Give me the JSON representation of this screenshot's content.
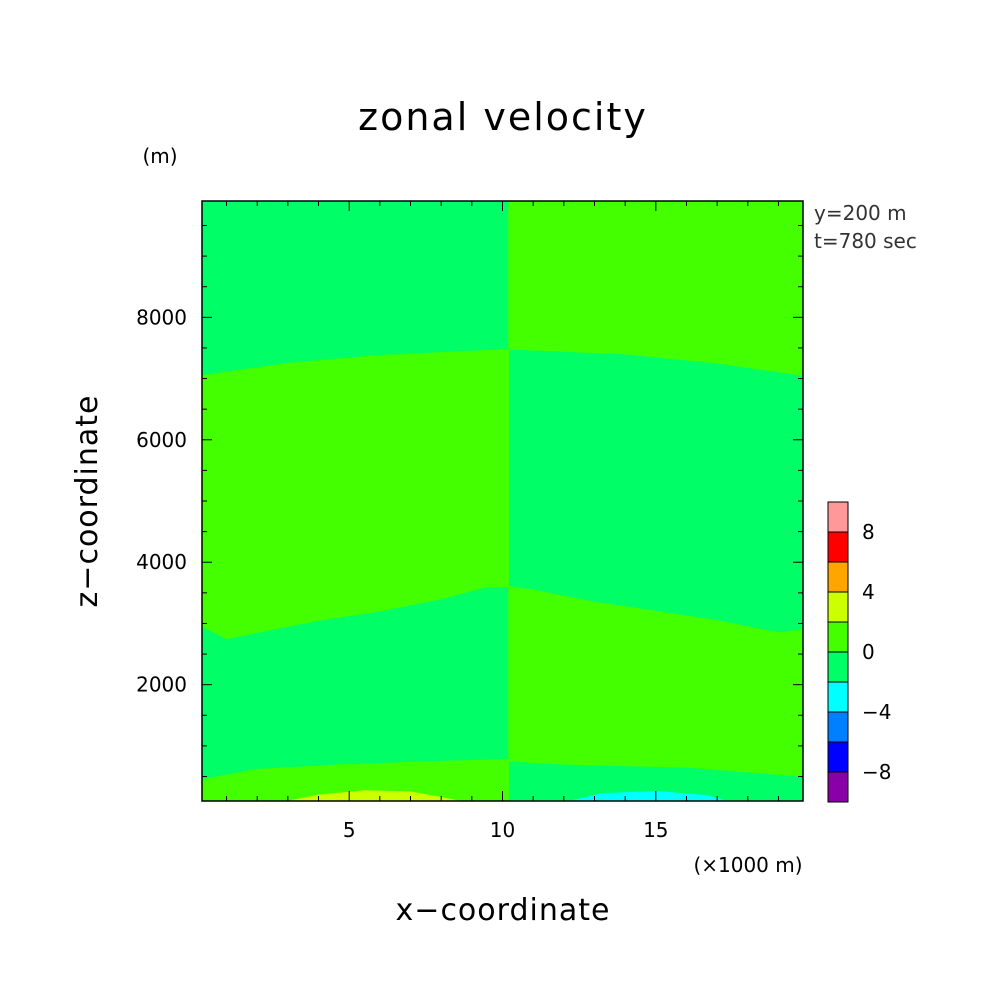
{
  "chart_data": {
    "type": "heatmap",
    "title": "zonal velocity",
    "xlabel": "x−coordinate",
    "ylabel": "z−coordinate",
    "x_unit": "(×1000 m)",
    "y_unit": "(m)",
    "xlim": [
      0.2,
      19.8
    ],
    "ylim": [
      100,
      9900
    ],
    "x_ticks": [
      5,
      10,
      15
    ],
    "x_tick_labels": [
      "5",
      "10",
      "15"
    ],
    "y_ticks": [
      2000,
      4000,
      6000,
      8000
    ],
    "y_tick_labels": [
      "2000",
      "4000",
      "6000",
      "8000"
    ],
    "annotations": [
      "y=200 m",
      "t=780 sec"
    ],
    "colorbar": {
      "levels": [
        -10,
        -8,
        -6,
        -4,
        -2,
        0,
        2,
        4,
        6,
        8,
        10
      ],
      "tick_values": [
        8,
        4,
        0,
        -4,
        -8
      ],
      "tick_labels": [
        "8",
        "4",
        "0",
        "−4",
        "−8"
      ],
      "colors": [
        "#8a00a8",
        "#0000ff",
        "#0080ff",
        "#00ffff",
        "#00ff66",
        "#44ff00",
        "#ccff00",
        "#ffa500",
        "#ff0000",
        "#ff9999"
      ]
    },
    "background_color": "#00ff66",
    "regions": [
      {
        "color": "#44ff00",
        "points": [
          [
            10.2,
            9900
          ],
          [
            19.8,
            9900
          ],
          [
            19.8,
            7050
          ],
          [
            17,
            7250
          ],
          [
            14,
            7400
          ],
          [
            10.2,
            7480
          ]
        ]
      },
      {
        "color": "#44ff00",
        "points": [
          [
            0.2,
            7050
          ],
          [
            3,
            7250
          ],
          [
            6,
            7380
          ],
          [
            9,
            7450
          ],
          [
            10.2,
            7480
          ],
          [
            10.2,
            3600
          ],
          [
            9.5,
            3600
          ],
          [
            8,
            3400
          ],
          [
            6,
            3200
          ],
          [
            4,
            3050
          ],
          [
            2,
            2850
          ],
          [
            1,
            2750
          ],
          [
            0.2,
            2950
          ]
        ]
      },
      {
        "color": "#44ff00",
        "points": [
          [
            10.2,
            3600
          ],
          [
            11,
            3550
          ],
          [
            13,
            3350
          ],
          [
            15,
            3200
          ],
          [
            17,
            3050
          ],
          [
            19,
            2850
          ],
          [
            19.8,
            2900
          ],
          [
            19.8,
            500
          ],
          [
            16,
            650
          ],
          [
            12,
            700
          ],
          [
            10.2,
            750
          ]
        ]
      },
      {
        "color": "#44ff00",
        "points": [
          [
            0.2,
            100
          ],
          [
            10.2,
            100
          ],
          [
            10.2,
            780
          ],
          [
            8,
            750
          ],
          [
            5,
            700
          ],
          [
            2,
            620
          ],
          [
            0.2,
            450
          ]
        ]
      },
      {
        "color": "#ccff00",
        "points": [
          [
            3,
            100
          ],
          [
            4,
            200
          ],
          [
            5.5,
            270
          ],
          [
            7,
            250
          ],
          [
            8,
            160
          ],
          [
            8.6,
            100
          ]
        ]
      },
      {
        "color": "#00ffff",
        "points": [
          [
            12.2,
            100
          ],
          [
            13.2,
            220
          ],
          [
            15,
            260
          ],
          [
            16.7,
            190
          ],
          [
            17.3,
            100
          ]
        ]
      }
    ]
  }
}
